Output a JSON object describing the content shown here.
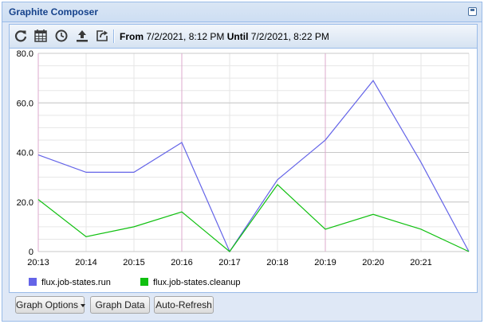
{
  "window": {
    "title": "Graphite Composer"
  },
  "toolbar": {
    "icons": [
      "refresh-icon",
      "calendar-icon",
      "clock-icon",
      "upload-icon",
      "share-icon"
    ],
    "from_label": "From",
    "from_value": "7/2/2021, 8:12 PM",
    "until_label": "Until",
    "until_value": "7/2/2021, 8:22 PM"
  },
  "buttons": {
    "graph_options": "Graph Options",
    "graph_data": "Graph Data",
    "auto_refresh": "Auto-Refresh"
  },
  "chart_data": {
    "type": "line",
    "x": [
      "20:13",
      "20:14",
      "20:15",
      "20:16",
      "20:17",
      "20:18",
      "20:19",
      "20:20",
      "20:21",
      "20:22"
    ],
    "x_tick_labels": [
      "20:13",
      "20:14",
      "20:15",
      "20:16",
      "20:17",
      "20:18",
      "20:19",
      "20:20",
      "20:21"
    ],
    "y_tick_labels": [
      "0",
      "20.0",
      "40.0",
      "60.0",
      "80.0"
    ],
    "ylim": [
      0,
      80
    ],
    "grid": true,
    "legend_position": "bottom-left",
    "series": [
      {
        "name": "flux.job-states.run",
        "color": "#6464e8",
        "values": [
          39,
          32,
          32,
          44,
          0,
          29,
          45,
          69,
          36,
          0
        ]
      },
      {
        "name": "flux.job-states.cleanup",
        "color": "#10c010",
        "values": [
          21,
          6,
          10,
          16,
          0,
          27,
          9,
          15,
          9,
          0
        ]
      }
    ]
  }
}
